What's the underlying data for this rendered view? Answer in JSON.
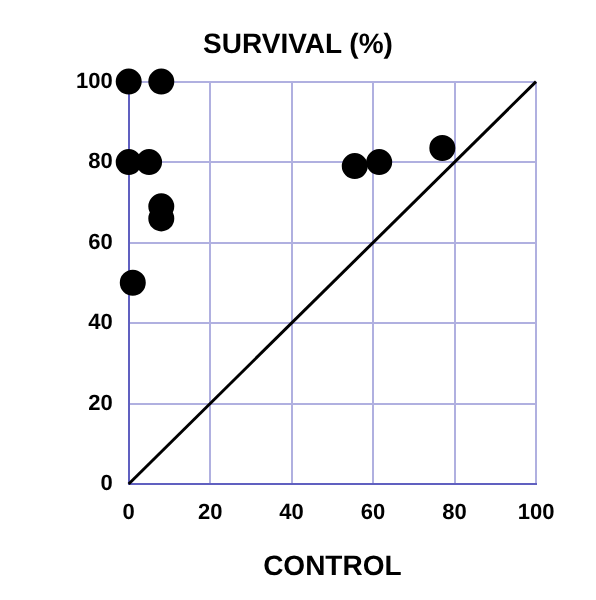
{
  "chart_data": {
    "type": "scatter",
    "title": "SURVIVAL (%)",
    "xlabel": "CONTROL",
    "xlim": [
      0,
      100
    ],
    "ylim": [
      0,
      100
    ],
    "xticks": [
      0,
      20,
      40,
      60,
      80,
      100
    ],
    "yticks": [
      0,
      20,
      40,
      60,
      80,
      100
    ],
    "grid": true,
    "marker": "circle",
    "series": [
      {
        "color": "#000000",
        "x": [
          0,
          8,
          0,
          5,
          8,
          8,
          1,
          55.5,
          61.5,
          77
        ],
        "values": [
          100,
          100,
          80,
          80,
          69,
          66,
          50,
          79,
          80,
          83.5
        ]
      },
      {
        "type": "line",
        "color": "#000000",
        "x": [
          0,
          100
        ],
        "values": [
          0,
          100
        ],
        "line_style": "solid",
        "marker": "none"
      }
    ]
  }
}
